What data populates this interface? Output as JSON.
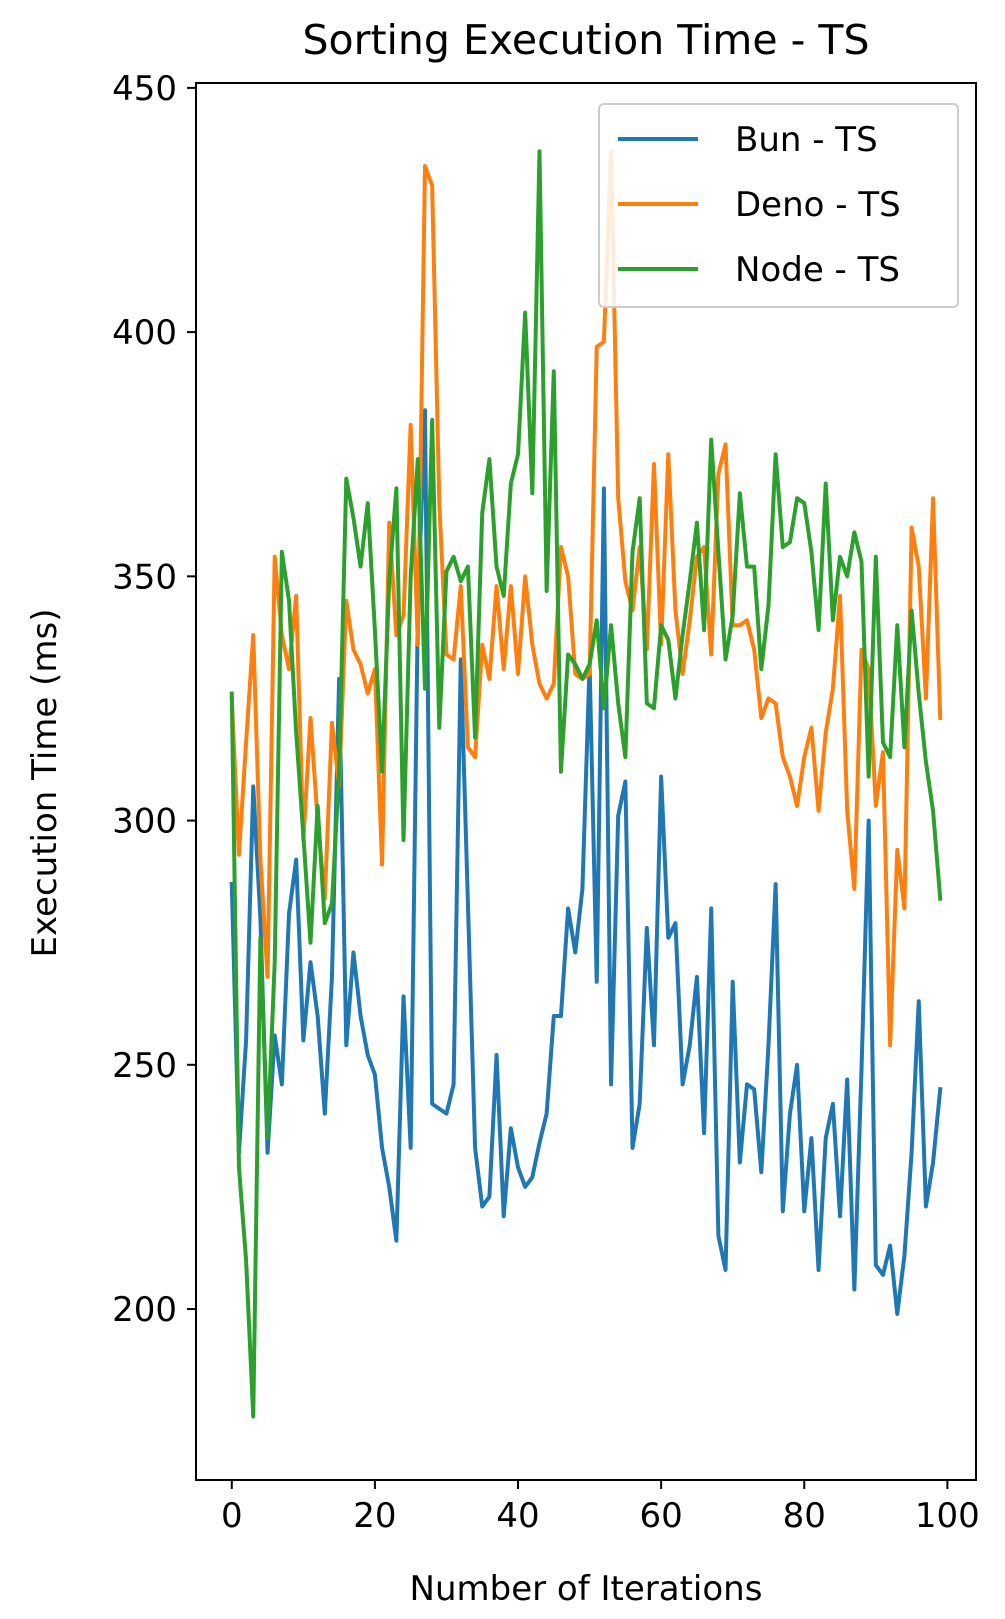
{
  "chart_data": {
    "type": "line",
    "title": "Sorting Execution Time - TS",
    "xlabel": "Number of Iterations",
    "ylabel": "Execution Time (ms)",
    "xlim": [
      -5,
      104
    ],
    "ylim": [
      165,
      451
    ],
    "xticks": [
      0,
      20,
      40,
      60,
      80,
      100
    ],
    "yticks": [
      200,
      250,
      300,
      350,
      400,
      450
    ],
    "xtick_labels": [
      "0",
      "20",
      "40",
      "60",
      "80",
      "100"
    ],
    "ytick_labels": [
      "200",
      "250",
      "300",
      "350",
      "400",
      "450"
    ],
    "grid": false,
    "legend_position": "top-right",
    "series": [
      {
        "name": "Bun - TS",
        "color": "#1f77b4",
        "values": [
          287,
          232,
          255,
          307,
          280,
          232,
          256,
          246,
          281,
          292,
          255,
          271,
          260,
          240,
          268,
          329,
          254,
          273,
          260,
          252,
          248,
          233,
          225,
          214,
          264,
          233,
          343,
          384,
          242,
          241,
          240,
          246,
          333,
          283,
          233,
          221,
          223,
          252,
          219,
          237,
          229,
          225,
          227,
          234,
          240,
          260,
          260,
          282,
          273,
          286,
          332,
          267,
          368,
          246,
          301,
          308,
          233,
          242,
          278,
          254,
          309,
          276,
          279,
          246,
          254,
          268,
          236,
          282,
          215,
          208,
          267,
          230,
          246,
          245,
          228,
          254,
          287,
          220,
          240,
          250,
          220,
          235,
          208,
          235,
          242,
          219,
          247,
          204,
          249,
          300,
          209,
          207,
          213,
          199,
          211,
          232,
          263,
          221,
          230,
          245
        ]
      },
      {
        "name": "Deno - TS",
        "color": "#ff7f0e",
        "values": [
          325,
          293,
          316,
          338,
          292,
          268,
          354,
          338,
          331,
          346,
          296,
          321,
          300,
          284,
          320,
          307,
          345,
          335,
          332,
          326,
          331,
          291,
          361,
          338,
          342,
          381,
          336,
          434,
          430,
          365,
          334,
          333,
          348,
          315,
          313,
          336,
          329,
          348,
          331,
          348,
          330,
          350,
          336,
          328,
          325,
          328,
          356,
          350,
          330,
          329,
          330,
          397,
          398,
          437,
          366,
          349,
          343,
          356,
          335,
          373,
          336,
          375,
          343,
          330,
          341,
          354,
          356,
          334,
          371,
          377,
          340,
          340,
          341,
          335,
          321,
          325,
          324,
          313,
          309,
          303,
          313,
          319,
          302,
          318,
          327,
          346,
          302,
          286,
          335,
          331,
          303,
          314,
          254,
          294,
          282,
          360,
          352,
          325,
          366,
          321
        ]
      },
      {
        "name": "Node - TS",
        "color": "#2ca02c",
        "values": [
          326,
          229,
          210,
          178,
          276,
          235,
          271,
          355,
          345,
          318,
          297,
          275,
          303,
          279,
          283,
          310,
          370,
          362,
          352,
          365,
          339,
          310,
          349,
          368,
          296,
          350,
          374,
          327,
          382,
          319,
          351,
          354,
          349,
          352,
          317,
          363,
          374,
          352,
          346,
          369,
          375,
          404,
          367,
          437,
          347,
          392,
          310,
          334,
          332,
          329,
          332,
          341,
          323,
          340,
          324,
          313,
          355,
          366,
          324,
          323,
          340,
          337,
          325,
          338,
          349,
          361,
          339,
          378,
          355,
          333,
          342,
          367,
          352,
          352,
          331,
          344,
          375,
          356,
          357,
          366,
          365,
          355,
          339,
          369,
          341,
          354,
          350,
          359,
          353,
          309,
          354,
          316,
          313,
          340,
          315,
          343,
          326,
          312,
          302,
          284
        ]
      }
    ]
  }
}
